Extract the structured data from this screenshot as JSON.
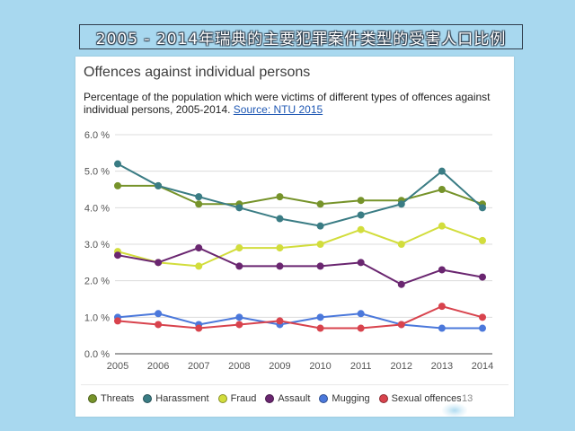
{
  "banner": {
    "title": "2005 - 2014年瑞典的主要犯罪案件类型的受害人口比例"
  },
  "page_number": "13",
  "colors": {
    "slide_background": "#a8d8ef",
    "banner_border": "#2f3d4c",
    "panel_background": "#ffffff",
    "source_link": "#1f58b4",
    "gridline": "#dcdcdc",
    "axis_line": "#444444"
  },
  "chart_data": {
    "type": "line",
    "title": "Offences against individual persons",
    "subtitle": "Percentage of the population which were victims of different types of offences against individual persons, 2005-2014.",
    "source": "Source: NTU 2015",
    "x": [
      "2005",
      "2006",
      "2007",
      "2008",
      "2009",
      "2010",
      "2011",
      "2012",
      "2013",
      "2014"
    ],
    "ylim": [
      0,
      6
    ],
    "y_tick_values": [
      0,
      1,
      2,
      3,
      4,
      5,
      6
    ],
    "y_tick_labels": [
      "0.0 %",
      "1.0 %",
      "2.0 %",
      "3.0 %",
      "4.0 %",
      "5.0 %",
      "6.0 %"
    ],
    "grid": true,
    "legend_position": "bottom",
    "series": [
      {
        "name": "Threats",
        "color": "#76932a",
        "values": [
          4.6,
          4.6,
          4.1,
          4.1,
          4.3,
          4.1,
          4.2,
          4.2,
          4.5,
          4.1
        ]
      },
      {
        "name": "Harassment",
        "color": "#3a7c84",
        "values": [
          5.2,
          4.6,
          4.3,
          4.0,
          3.7,
          3.5,
          3.8,
          4.1,
          5.0,
          4.0
        ]
      },
      {
        "name": "Fraud",
        "color": "#d2dd3c",
        "values": [
          2.8,
          2.5,
          2.4,
          2.9,
          2.9,
          3.0,
          3.4,
          3.0,
          3.5,
          3.1
        ]
      },
      {
        "name": "Assault",
        "color": "#6a2670",
        "values": [
          2.7,
          2.5,
          2.9,
          2.4,
          2.4,
          2.4,
          2.5,
          1.9,
          2.3,
          2.1
        ]
      },
      {
        "name": "Mugging",
        "color": "#4b78db",
        "values": [
          1.0,
          1.1,
          0.8,
          1.0,
          0.8,
          1.0,
          1.1,
          0.8,
          0.7,
          0.7
        ]
      },
      {
        "name": "Sexual offences",
        "color": "#d8434d",
        "values": [
          0.9,
          0.8,
          0.7,
          0.8,
          0.9,
          0.7,
          0.7,
          0.8,
          1.3,
          1.0
        ]
      }
    ]
  }
}
